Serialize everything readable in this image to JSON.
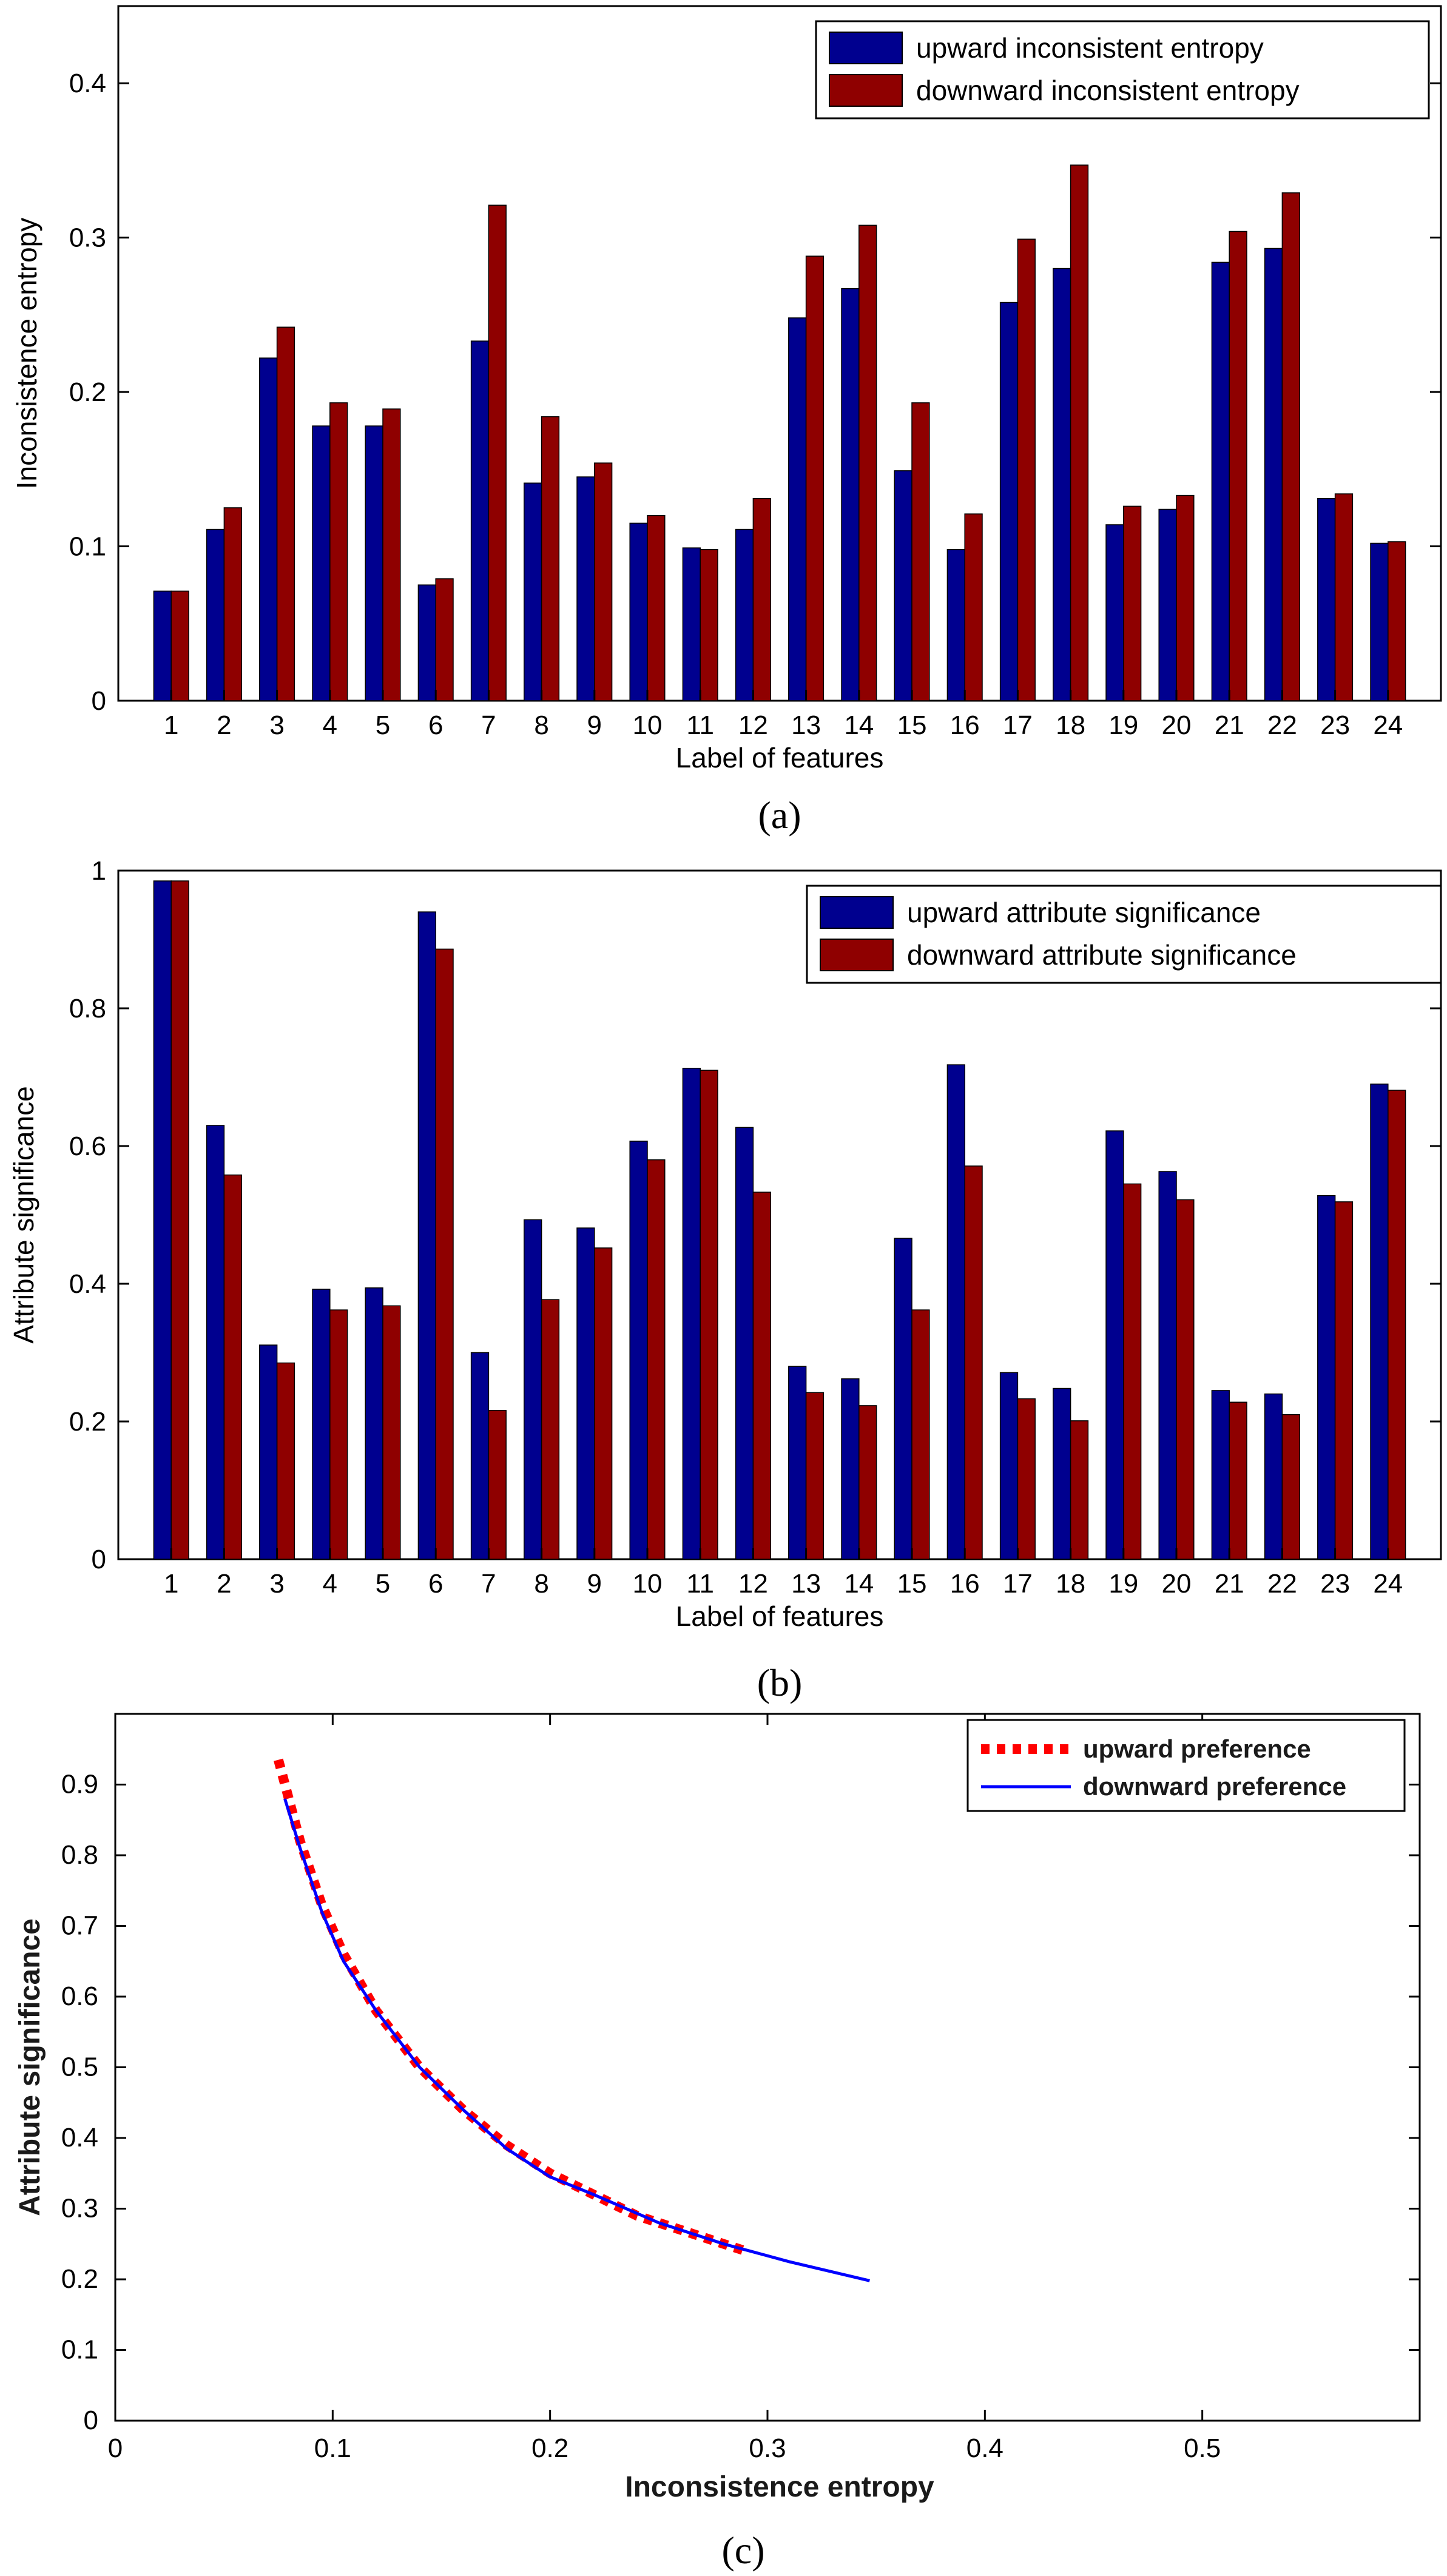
{
  "colors": {
    "up_bar": "#00008f",
    "down_bar": "#8f0000",
    "up_line": "#ff0000",
    "down_line": "#0000ff"
  },
  "chart_data": [
    {
      "type": "bar",
      "caption": "(a)",
      "title": "",
      "xlabel": "Label of features",
      "ylabel": "Inconsistence entropy",
      "ylim": [
        0,
        0.45
      ],
      "yticks": [
        "0",
        "0.1",
        "0.2",
        "0.3",
        "0.4"
      ],
      "legend_position": "top-right",
      "categories": [
        "1",
        "2",
        "3",
        "4",
        "5",
        "6",
        "7",
        "8",
        "9",
        "10",
        "11",
        "12",
        "13",
        "14",
        "15",
        "16",
        "17",
        "18",
        "19",
        "20",
        "21",
        "22",
        "23",
        "24"
      ],
      "series": [
        {
          "name": "upward inconsistent entropy",
          "color": "#00008f",
          "values": [
            0.071,
            0.111,
            0.222,
            0.178,
            0.178,
            0.075,
            0.233,
            0.141,
            0.145,
            0.115,
            0.099,
            0.111,
            0.248,
            0.267,
            0.149,
            0.098,
            0.258,
            0.28,
            0.114,
            0.124,
            0.284,
            0.293,
            0.131,
            0.102
          ]
        },
        {
          "name": "downward inconsistent entropy",
          "color": "#8f0000",
          "values": [
            0.071,
            0.125,
            0.242,
            0.193,
            0.189,
            0.079,
            0.321,
            0.184,
            0.154,
            0.12,
            0.098,
            0.131,
            0.288,
            0.308,
            0.193,
            0.121,
            0.299,
            0.347,
            0.126,
            0.133,
            0.304,
            0.329,
            0.134,
            0.103
          ]
        }
      ]
    },
    {
      "type": "bar",
      "caption": "(b)",
      "title": "",
      "xlabel": "Label of features",
      "ylabel": "Attribute significance",
      "ylim": [
        0,
        1
      ],
      "yticks": [
        "0",
        "0.2",
        "0.4",
        "0.6",
        "0.8",
        "1"
      ],
      "legend_position": "top-right",
      "categories": [
        "1",
        "2",
        "3",
        "4",
        "5",
        "6",
        "7",
        "8",
        "9",
        "10",
        "11",
        "12",
        "13",
        "14",
        "15",
        "16",
        "17",
        "18",
        "19",
        "20",
        "21",
        "22",
        "23",
        "24"
      ],
      "series": [
        {
          "name": "upward attribute significance",
          "color": "#00008f",
          "values": [
            0.985,
            0.63,
            0.311,
            0.392,
            0.394,
            0.94,
            0.3,
            0.493,
            0.481,
            0.607,
            0.713,
            0.627,
            0.28,
            0.262,
            0.466,
            0.718,
            0.271,
            0.248,
            0.622,
            0.563,
            0.245,
            0.24,
            0.528,
            0.69
          ]
        },
        {
          "name": "downward attribute significance",
          "color": "#8f0000",
          "values": [
            0.985,
            0.558,
            0.285,
            0.362,
            0.368,
            0.886,
            0.216,
            0.377,
            0.452,
            0.58,
            0.71,
            0.533,
            0.242,
            0.223,
            0.362,
            0.571,
            0.233,
            0.201,
            0.545,
            0.522,
            0.228,
            0.21,
            0.519,
            0.681
          ]
        }
      ]
    },
    {
      "type": "line",
      "caption": "(c)",
      "title": "",
      "xlabel": "Inconsistence entropy",
      "ylabel": "Attribute significance",
      "xlim": [
        0,
        0.6
      ],
      "ylim": [
        0,
        1
      ],
      "xticks": [
        "0",
        "0.1",
        "0.2",
        "0.3",
        "0.4",
        "0.5"
      ],
      "yticks": [
        "0",
        "0.1",
        "0.2",
        "0.3",
        "0.4",
        "0.5",
        "0.6",
        "0.7",
        "0.8",
        "0.9"
      ],
      "legend_position": "top-right",
      "series": [
        {
          "name": "upward preference",
          "color": "#ff0000",
          "style": "dotted",
          "x": [
            0.075,
            0.085,
            0.095,
            0.105,
            0.12,
            0.14,
            0.16,
            0.18,
            0.2,
            0.22,
            0.24,
            0.26,
            0.28,
            0.29
          ],
          "y": [
            0.935,
            0.82,
            0.73,
            0.66,
            0.58,
            0.5,
            0.44,
            0.39,
            0.35,
            0.32,
            0.29,
            0.27,
            0.25,
            0.24
          ]
        },
        {
          "name": "downward preference",
          "color": "#0000ff",
          "style": "solid",
          "x": [
            0.078,
            0.085,
            0.095,
            0.105,
            0.12,
            0.14,
            0.16,
            0.18,
            0.2,
            0.22,
            0.25,
            0.28,
            0.31,
            0.347
          ],
          "y": [
            0.88,
            0.81,
            0.72,
            0.65,
            0.58,
            0.5,
            0.44,
            0.385,
            0.345,
            0.32,
            0.28,
            0.25,
            0.225,
            0.198
          ]
        }
      ]
    }
  ]
}
